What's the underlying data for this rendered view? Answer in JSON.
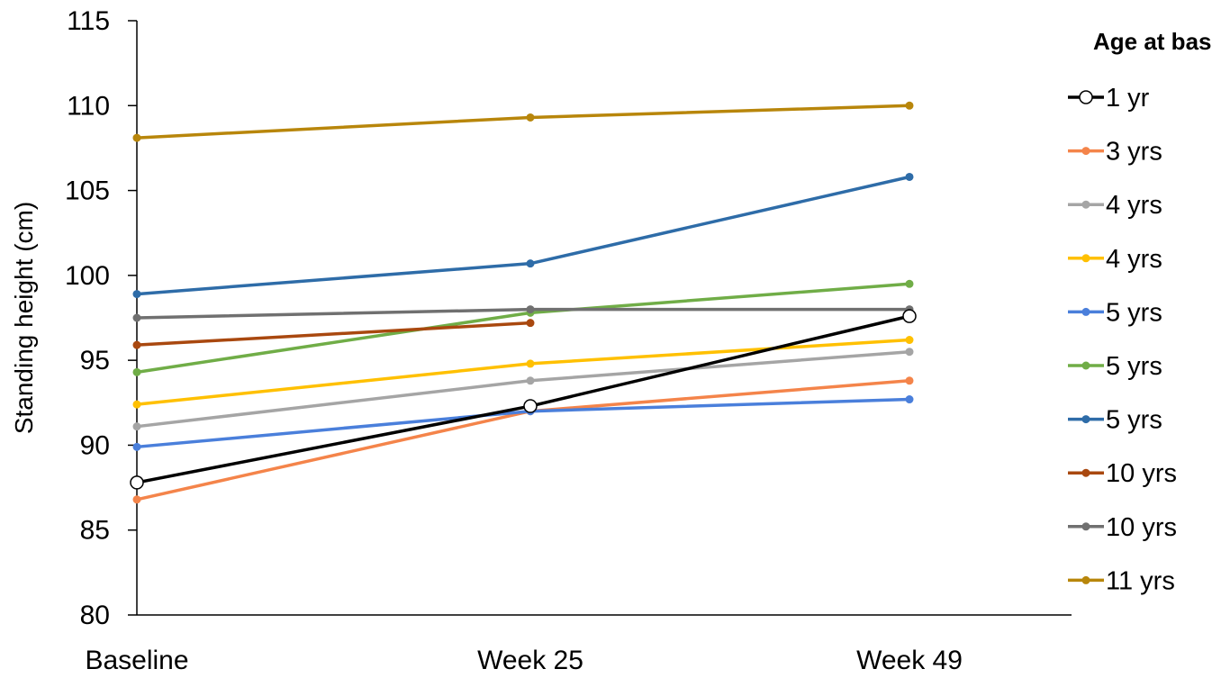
{
  "chart_data": {
    "type": "line",
    "title": "",
    "xlabel": "",
    "ylabel": "Standing height (cm)",
    "categories": [
      "Baseline",
      "Week 25",
      "Week 49"
    ],
    "ylim": [
      80,
      115
    ],
    "yticks": [
      80,
      85,
      90,
      95,
      100,
      105,
      110,
      115
    ],
    "grid": false,
    "legend": {
      "title": "Age at baseline",
      "position": "right"
    },
    "series": [
      {
        "name": "1 yr",
        "color": "#000000",
        "marker": "open-circle",
        "values": [
          87.8,
          92.3,
          97.6
        ]
      },
      {
        "name": "3 yrs",
        "color": "#f4844a",
        "marker": "dot",
        "values": [
          86.8,
          92.0,
          93.8
        ]
      },
      {
        "name": "4 yrs",
        "color": "#a5a5a5",
        "marker": "dot",
        "values": [
          91.1,
          93.8,
          95.5
        ]
      },
      {
        "name": "4 yrs",
        "color": "#ffc000",
        "marker": "dot",
        "values": [
          92.4,
          94.8,
          96.2
        ]
      },
      {
        "name": "5 yrs",
        "color": "#4a7fdb",
        "marker": "dot",
        "values": [
          89.9,
          92.0,
          92.7
        ]
      },
      {
        "name": "5 yrs",
        "color": "#70ad47",
        "marker": "dot",
        "values": [
          94.3,
          97.8,
          99.5
        ]
      },
      {
        "name": "5 yrs",
        "color": "#2e6ca8",
        "marker": "dot",
        "values": [
          98.9,
          100.7,
          105.8
        ]
      },
      {
        "name": "10 yrs",
        "color": "#a9480f",
        "marker": "dot",
        "values": [
          95.9,
          97.2,
          null
        ]
      },
      {
        "name": "10 yrs",
        "color": "#707070",
        "marker": "dot",
        "values": [
          97.5,
          98.0,
          98.0
        ]
      },
      {
        "name": "11 yrs",
        "color": "#b8860b",
        "marker": "dot",
        "values": [
          108.1,
          109.3,
          110.0
        ]
      }
    ]
  }
}
